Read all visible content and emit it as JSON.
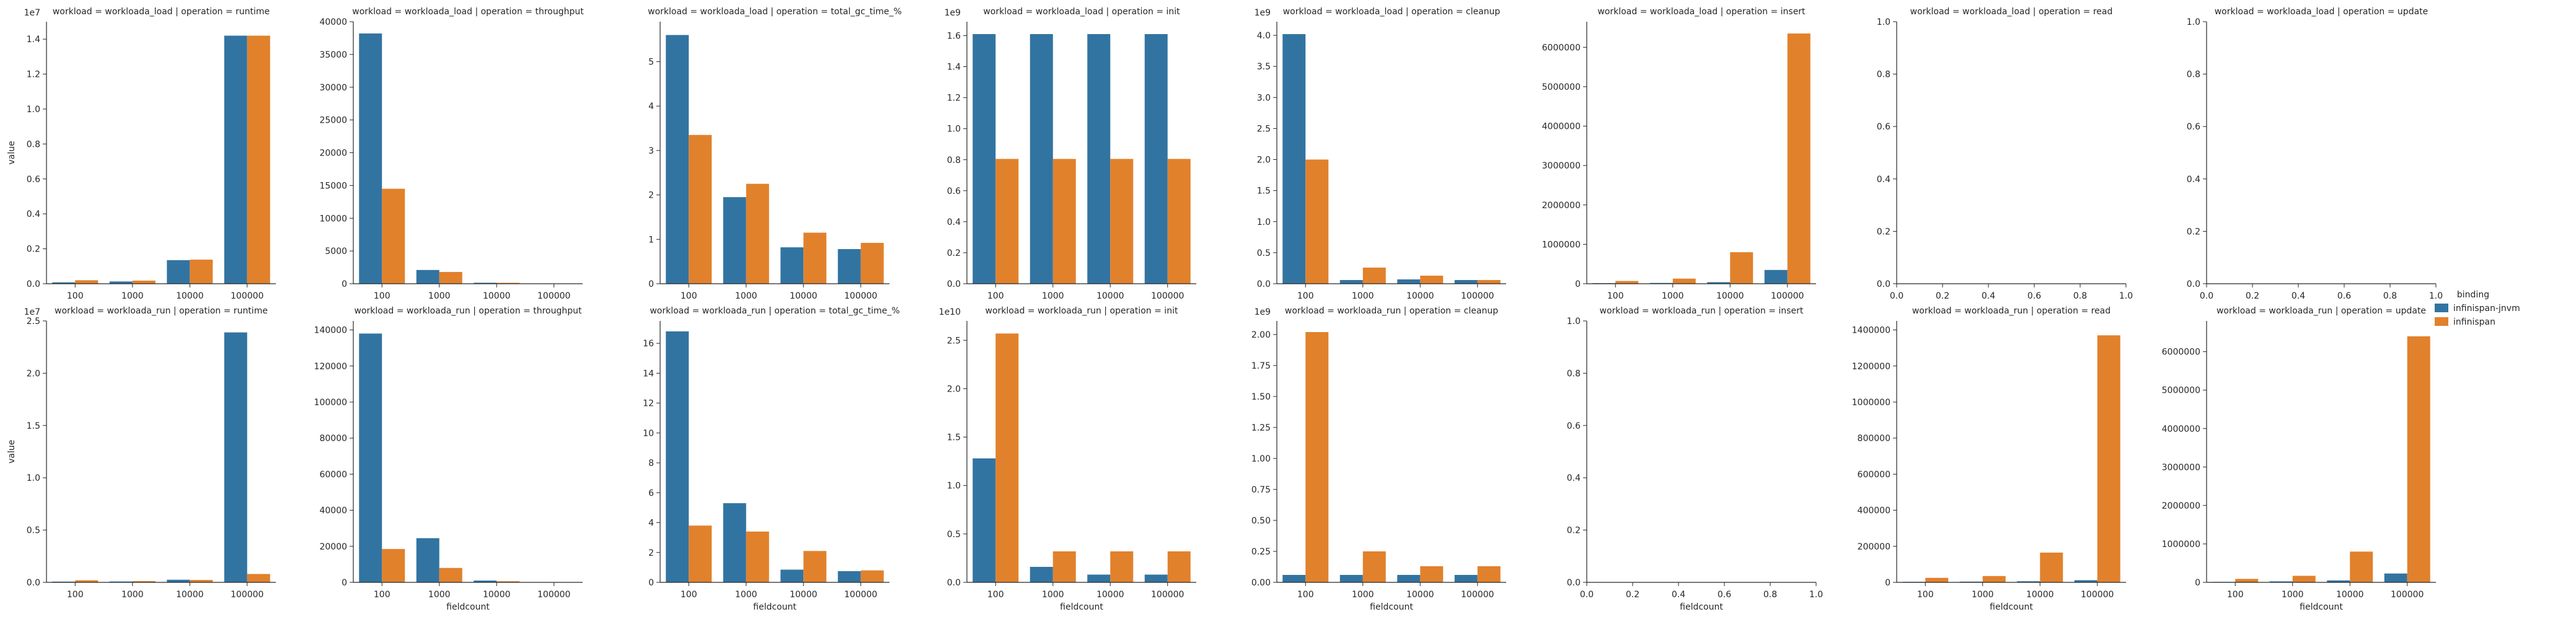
{
  "figure": {
    "ylabel": "value",
    "xlabel": "fieldcount",
    "legend": {
      "title": "binding",
      "placement": "center-right",
      "entries": [
        {
          "name": "infinispan-jnvm",
          "color": "#3274a1"
        },
        {
          "name": "infinispan",
          "color": "#e1812c"
        }
      ]
    }
  },
  "chart_data": [
    {
      "type": "bar",
      "title": "workload = workloada_load | operation = runtime",
      "categories": [
        "100",
        "1000",
        "10000",
        "100000"
      ],
      "ylim": [
        0,
        15000000
      ],
      "yticks": [
        "0.0",
        "0.2",
        "0.4",
        "0.6",
        "0.8",
        "1.0",
        "1.2",
        "1.4"
      ],
      "ytick_values": [
        0,
        2000000,
        4000000,
        6000000,
        8000000,
        10000000,
        12000000,
        14000000
      ],
      "offset": "1e7",
      "ylabel": "value",
      "xlabel": "",
      "show_xticks": true,
      "series": [
        {
          "name": "infinispan-jnvm",
          "values": [
            80000,
            130000,
            1350000,
            14200000
          ]
        },
        {
          "name": "infinispan",
          "values": [
            200000,
            180000,
            1380000,
            14200000
          ]
        }
      ]
    },
    {
      "type": "bar",
      "title": "workload = workloada_load | operation = throughput",
      "categories": [
        "100",
        "1000",
        "10000",
        "100000"
      ],
      "ylim": [
        0,
        40000
      ],
      "yticks": [
        "0",
        "5000",
        "10000",
        "15000",
        "20000",
        "25000",
        "30000",
        "35000",
        "40000"
      ],
      "ytick_values": [
        0,
        5000,
        10000,
        15000,
        20000,
        25000,
        30000,
        35000,
        40000
      ],
      "offset": "",
      "ylabel": "",
      "xlabel": "",
      "show_xticks": true,
      "series": [
        {
          "name": "infinispan-jnvm",
          "values": [
            38200,
            2100,
            150,
            20
          ]
        },
        {
          "name": "infinispan",
          "values": [
            14500,
            1800,
            140,
            15
          ]
        }
      ]
    },
    {
      "type": "bar",
      "title": "workload = workloada_load | operation = total_gc_time_%",
      "categories": [
        "100",
        "1000",
        "10000",
        "100000"
      ],
      "ylim": [
        0,
        5.9
      ],
      "yticks": [
        "0",
        "1",
        "2",
        "3",
        "4",
        "5"
      ],
      "ytick_values": [
        0,
        1,
        2,
        3,
        4,
        5
      ],
      "offset": "",
      "ylabel": "",
      "xlabel": "",
      "show_xticks": true,
      "series": [
        {
          "name": "infinispan-jnvm",
          "values": [
            5.6,
            1.95,
            0.82,
            0.78
          ]
        },
        {
          "name": "infinispan",
          "values": [
            3.35,
            2.25,
            1.15,
            0.92
          ]
        }
      ]
    },
    {
      "type": "bar",
      "title": "workload = workloada_load | operation = init",
      "categories": [
        "100",
        "1000",
        "10000",
        "100000"
      ],
      "ylim": [
        0,
        1690000000
      ],
      "yticks": [
        "0.0",
        "0.2",
        "0.4",
        "0.6",
        "0.8",
        "1.0",
        "1.2",
        "1.4",
        "1.6"
      ],
      "ytick_values": [
        0,
        200000000,
        400000000,
        600000000,
        800000000,
        1000000000,
        1200000000,
        1400000000,
        1600000000
      ],
      "offset": "1e9",
      "ylabel": "",
      "xlabel": "",
      "show_xticks": true,
      "series": [
        {
          "name": "infinispan-jnvm",
          "values": [
            1610000000,
            1610000000,
            1610000000,
            1610000000
          ]
        },
        {
          "name": "infinispan",
          "values": [
            805000000,
            805000000,
            805000000,
            805000000
          ]
        }
      ]
    },
    {
      "type": "bar",
      "title": "workload = workloada_load | operation = cleanup",
      "categories": [
        "100",
        "1000",
        "10000",
        "100000"
      ],
      "ylim": [
        0,
        4220000000
      ],
      "yticks": [
        "0.0",
        "0.5",
        "1.0",
        "1.5",
        "2.0",
        "2.5",
        "3.0",
        "3.5",
        "4.0"
      ],
      "ytick_values": [
        0,
        500000000,
        1000000000,
        1500000000,
        2000000000,
        2500000000,
        3000000000,
        3500000000,
        4000000000
      ],
      "offset": "1e9",
      "ylabel": "",
      "xlabel": "",
      "show_xticks": true,
      "series": [
        {
          "name": "infinispan-jnvm",
          "values": [
            4020000000,
            60000000,
            70000000,
            60000000
          ]
        },
        {
          "name": "infinispan",
          "values": [
            2000000000,
            260000000,
            130000000,
            60000000
          ]
        }
      ]
    },
    {
      "type": "bar",
      "title": "workload = workloada_load | operation = insert",
      "categories": [
        "100",
        "1000",
        "10000",
        "100000"
      ],
      "ylim": [
        0,
        6650000
      ],
      "yticks": [
        "0",
        "1000000",
        "2000000",
        "3000000",
        "4000000",
        "5000000",
        "6000000"
      ],
      "ytick_values": [
        0,
        1000000,
        2000000,
        3000000,
        4000000,
        5000000,
        6000000
      ],
      "offset": "",
      "ylabel": "",
      "xlabel": "",
      "show_xticks": true,
      "series": [
        {
          "name": "infinispan-jnvm",
          "values": [
            15000,
            20000,
            40000,
            350000
          ]
        },
        {
          "name": "infinispan",
          "values": [
            70000,
            130000,
            800000,
            6350000
          ]
        }
      ]
    },
    {
      "type": "empty",
      "title": "workload = workloada_load | operation = read",
      "xlim": [
        0,
        1
      ],
      "ylim": [
        0,
        1
      ],
      "xticks": [
        "0.0",
        "0.2",
        "0.4",
        "0.6",
        "0.8",
        "1.0"
      ],
      "yticks": [
        "0.0",
        "0.2",
        "0.4",
        "0.6",
        "0.8",
        "1.0"
      ],
      "ylabel": "",
      "xlabel": "",
      "show_xticks": true
    },
    {
      "type": "empty",
      "title": "workload = workloada_load | operation = update",
      "xlim": [
        0,
        1
      ],
      "ylim": [
        0,
        1
      ],
      "xticks": [
        "0.0",
        "0.2",
        "0.4",
        "0.6",
        "0.8",
        "1.0"
      ],
      "yticks": [
        "0.0",
        "0.2",
        "0.4",
        "0.6",
        "0.8",
        "1.0"
      ],
      "ylabel": "",
      "xlabel": "",
      "show_xticks": true
    },
    {
      "type": "bar",
      "title": "workload = workloada_run | operation = runtime",
      "categories": [
        "100",
        "1000",
        "10000",
        "100000"
      ],
      "ylim": [
        0,
        25000000
      ],
      "yticks": [
        "0.0",
        "0.5",
        "1.0",
        "1.5",
        "2.0",
        "2.5"
      ],
      "ytick_values": [
        0,
        5000000,
        10000000,
        15000000,
        20000000,
        25000000
      ],
      "offset": "1e7",
      "ylabel": "value",
      "xlabel": "",
      "show_xticks": true,
      "series": [
        {
          "name": "infinispan-jnvm",
          "values": [
            70000,
            80000,
            250000,
            23900000
          ]
        },
        {
          "name": "infinispan",
          "values": [
            200000,
            120000,
            230000,
            800000
          ]
        }
      ]
    },
    {
      "type": "bar",
      "title": "workload = workloada_run | operation = throughput",
      "categories": [
        "100",
        "1000",
        "10000",
        "100000"
      ],
      "ylim": [
        0,
        145000
      ],
      "yticks": [
        "0",
        "20000",
        "40000",
        "60000",
        "80000",
        "100000",
        "120000",
        "140000"
      ],
      "ytick_values": [
        0,
        20000,
        40000,
        60000,
        80000,
        100000,
        120000,
        140000
      ],
      "offset": "",
      "ylabel": "",
      "xlabel": "fieldcount",
      "show_xticks": true,
      "series": [
        {
          "name": "infinispan-jnvm",
          "values": [
            138000,
            24500,
            1000,
            40
          ]
        },
        {
          "name": "infinispan",
          "values": [
            18500,
            8000,
            600,
            90
          ]
        }
      ]
    },
    {
      "type": "bar",
      "title": "workload = workloada_run | operation = total_gc_time_%",
      "categories": [
        "100",
        "1000",
        "10000",
        "100000"
      ],
      "ylim": [
        0,
        17.5
      ],
      "yticks": [
        "0",
        "2",
        "4",
        "6",
        "8",
        "10",
        "12",
        "14",
        "16"
      ],
      "ytick_values": [
        0,
        2,
        4,
        6,
        8,
        10,
        12,
        14,
        16
      ],
      "offset": "",
      "ylabel": "",
      "xlabel": "fieldcount",
      "show_xticks": true,
      "series": [
        {
          "name": "infinispan-jnvm",
          "values": [
            16.8,
            5.3,
            0.85,
            0.75
          ]
        },
        {
          "name": "infinispan",
          "values": [
            3.8,
            3.4,
            2.1,
            0.8
          ]
        }
      ]
    },
    {
      "type": "bar",
      "title": "workload = workloada_run | operation = init",
      "categories": [
        "100",
        "1000",
        "10000",
        "100000"
      ],
      "ylim": [
        0,
        27000000000
      ],
      "yticks": [
        "0.0",
        "0.5",
        "1.0",
        "1.5",
        "2.0",
        "2.5"
      ],
      "ytick_values": [
        0,
        5000000000,
        10000000000,
        15000000000,
        20000000000,
        25000000000
      ],
      "offset": "1e10",
      "ylabel": "",
      "xlabel": "fieldcount",
      "show_xticks": true,
      "series": [
        {
          "name": "infinispan-jnvm",
          "values": [
            12800000000,
            1600000000,
            800000000,
            800000000
          ]
        },
        {
          "name": "infinispan",
          "values": [
            25700000000,
            3200000000,
            3200000000,
            3200000000
          ]
        }
      ]
    },
    {
      "type": "bar",
      "title": "workload = workloada_run | operation = cleanup",
      "categories": [
        "100",
        "1000",
        "10000",
        "100000"
      ],
      "ylim": [
        0,
        2110000000
      ],
      "yticks": [
        "0.00",
        "0.25",
        "0.50",
        "0.75",
        "1.00",
        "1.25",
        "1.50",
        "1.75",
        "2.00"
      ],
      "ytick_values": [
        0,
        250000000,
        500000000,
        750000000,
        1000000000,
        1250000000,
        1500000000,
        1750000000,
        2000000000
      ],
      "offset": "1e9",
      "ylabel": "",
      "xlabel": "fieldcount",
      "show_xticks": true,
      "series": [
        {
          "name": "infinispan-jnvm",
          "values": [
            60000000,
            60000000,
            60000000,
            60000000
          ]
        },
        {
          "name": "infinispan",
          "values": [
            2020000000,
            250000000,
            130000000,
            130000000
          ]
        }
      ]
    },
    {
      "type": "empty",
      "title": "workload = workloada_run | operation = insert",
      "xlim": [
        0,
        1
      ],
      "ylim": [
        0,
        1
      ],
      "xticks": [
        "0.0",
        "0.2",
        "0.4",
        "0.6",
        "0.8",
        "1.0"
      ],
      "yticks": [
        "0.0",
        "0.2",
        "0.4",
        "0.6",
        "0.8",
        "1.0"
      ],
      "ylabel": "",
      "xlabel": "fieldcount",
      "show_xticks": true
    },
    {
      "type": "bar",
      "title": "workload = workloada_run | operation = read",
      "categories": [
        "100",
        "1000",
        "10000",
        "100000"
      ],
      "ylim": [
        0,
        1450000
      ],
      "yticks": [
        "0",
        "200000",
        "400000",
        "600000",
        "800000",
        "1000000",
        "1200000",
        "1400000"
      ],
      "ytick_values": [
        0,
        200000,
        400000,
        600000,
        800000,
        1000000,
        1200000,
        1400000
      ],
      "offset": "",
      "ylabel": "",
      "xlabel": "fieldcount",
      "show_xticks": true,
      "series": [
        {
          "name": "infinispan-jnvm",
          "values": [
            3000,
            4000,
            6000,
            12000
          ]
        },
        {
          "name": "infinispan",
          "values": [
            25000,
            35000,
            165000,
            1370000
          ]
        }
      ]
    },
    {
      "type": "bar",
      "title": "workload = workloada_run | operation = update",
      "categories": [
        "100",
        "1000",
        "10000",
        "100000"
      ],
      "ylim": [
        0,
        6800000
      ],
      "yticks": [
        "0",
        "1000000",
        "2000000",
        "3000000",
        "4000000",
        "5000000",
        "6000000"
      ],
      "ytick_values": [
        0,
        1000000,
        2000000,
        3000000,
        4000000,
        5000000,
        6000000
      ],
      "offset": "",
      "ylabel": "",
      "xlabel": "fieldcount",
      "show_xticks": true,
      "series": [
        {
          "name": "infinispan-jnvm",
          "values": [
            12000,
            25000,
            50000,
            230000
          ]
        },
        {
          "name": "infinispan",
          "values": [
            90000,
            170000,
            800000,
            6400000
          ]
        }
      ]
    }
  ]
}
